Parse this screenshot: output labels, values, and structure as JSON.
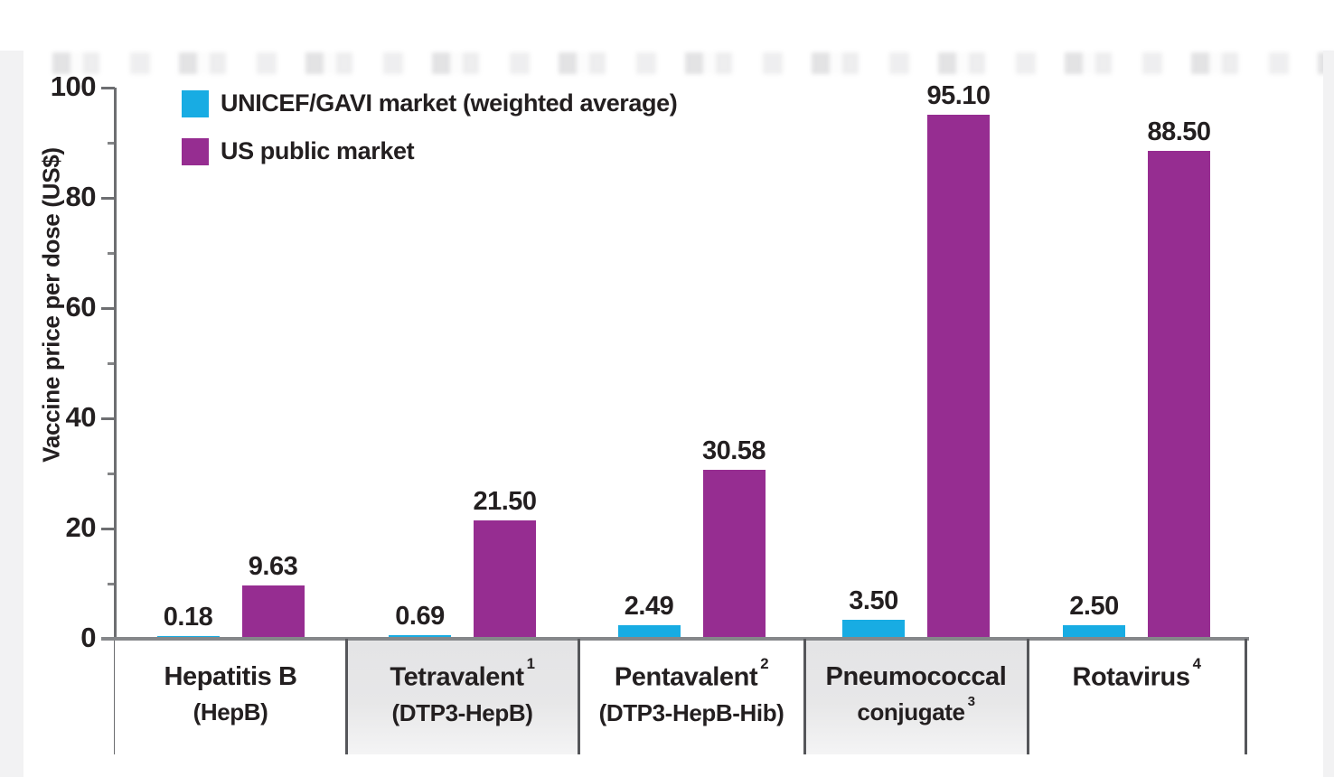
{
  "chart_data": {
    "type": "bar",
    "title": "",
    "ylabel": "Vaccine price per dose (US$)",
    "ylim": [
      0,
      100
    ],
    "yticks": [
      0,
      20,
      40,
      60,
      80,
      100
    ],
    "yticks_minor": [
      10,
      30,
      50,
      70,
      90
    ],
    "grid": false,
    "legend_position": "top-left-inside",
    "value_label_decimals": 2,
    "categories": [
      {
        "line1": "Hepatitis B",
        "sup1": "",
        "line2": "(HepB)",
        "sup2": "",
        "shaded": false
      },
      {
        "line1": "Tetravalent",
        "sup1": "1",
        "line2": "(DTP3-HepB)",
        "sup2": "",
        "shaded": true
      },
      {
        "line1": "Pentavalent",
        "sup1": "2",
        "line2": "(DTP3-HepB-Hib)",
        "sup2": "",
        "shaded": false
      },
      {
        "line1": "Pneumococcal",
        "sup1": "",
        "line2": "conjugate",
        "sup2": "3",
        "shaded": true
      },
      {
        "line1": "Rotavirus",
        "sup1": "4",
        "line2": "",
        "sup2": "",
        "shaded": false
      }
    ],
    "series": [
      {
        "name": "UNICEF/GAVI market (weighted average)",
        "color": "#18ACE3",
        "values": [
          0.18,
          0.69,
          2.49,
          3.5,
          2.5
        ]
      },
      {
        "name": "US public market",
        "color": "#962D91",
        "values": [
          9.63,
          21.5,
          30.58,
          95.1,
          88.5
        ]
      }
    ]
  },
  "colors": {
    "axis": "#6D6E71",
    "baseline": "#85878A",
    "divider": "#55565A",
    "text": "#231F20",
    "category_shade": "#E7E7E8",
    "page_edge": "#F2F2F3",
    "series_blue": "#18ACE3",
    "series_purple": "#962D91"
  }
}
